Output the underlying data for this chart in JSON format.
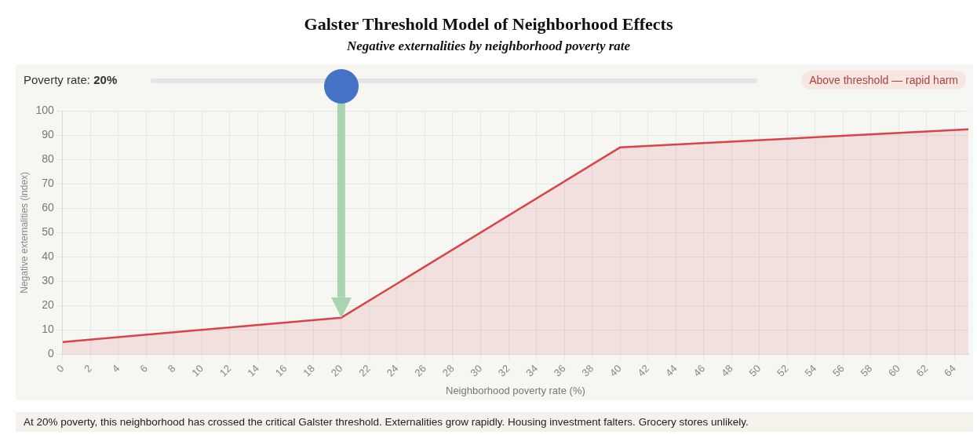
{
  "chart_data": {
    "type": "area",
    "title": "Galster Threshold Model of Neighborhood Effects",
    "subtitle": "Negative externalities by neighborhood poverty rate",
    "xlabel": "Neighborhood poverty rate (%)",
    "ylabel": "Negative externalities (index)",
    "x": [
      0,
      20,
      40,
      65
    ],
    "series": [
      {
        "color": "#d9434a",
        "values": [
          5,
          15,
          85,
          92.5
        ]
      }
    ],
    "xlim": [
      0,
      65
    ],
    "xticks": [
      0,
      2,
      4,
      6,
      8,
      10,
      12,
      14,
      16,
      18,
      20,
      22,
      24,
      26,
      28,
      30,
      32,
      34,
      36,
      38,
      40,
      42,
      44,
      46,
      48,
      50,
      52,
      54,
      56,
      58,
      60,
      62,
      64
    ],
    "ylim": [
      0,
      100
    ],
    "yticks": [
      0,
      10,
      20,
      30,
      40,
      50,
      60,
      70,
      80,
      90,
      100
    ],
    "grid": true,
    "legend": false,
    "ref_lines": [
      {
        "axis": "x",
        "value": 20,
        "color": "#a8d5b0"
      }
    ],
    "annotations": [
      "Poverty rate: 20%",
      "Above threshold — rapid harm",
      "At 20% poverty, this neighborhood has crossed the critical Galster threshold. Externalities grow rapidly. Housing investment falters. Grocery stores unlikely."
    ]
  }
}
